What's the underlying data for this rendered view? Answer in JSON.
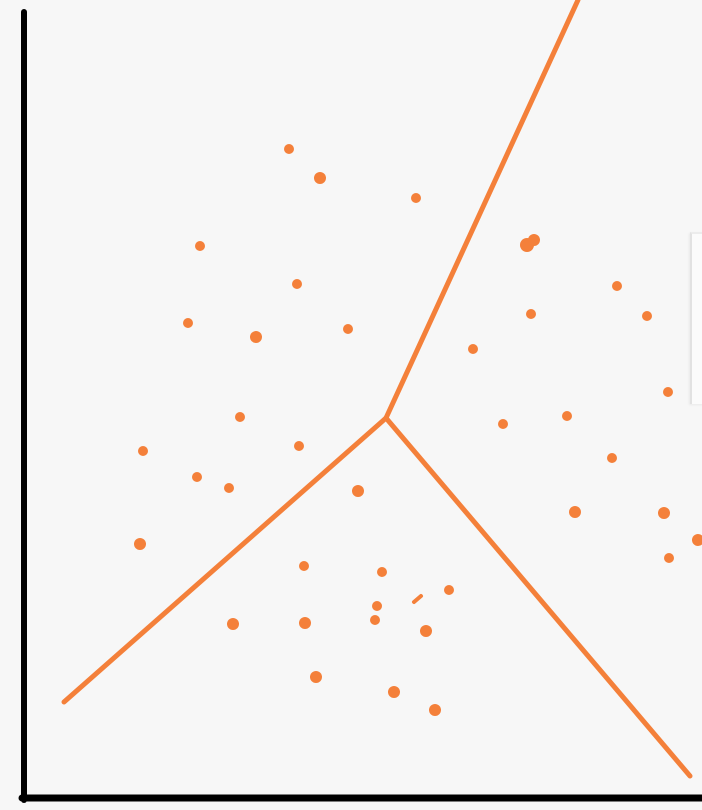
{
  "colors": {
    "background": "#f7f7f7",
    "axis": "#000000",
    "accent": "#f4803a"
  },
  "diagram": {
    "type": "voronoi-clusters",
    "cluster_count": 3,
    "axes_labels_shown": false
  }
}
